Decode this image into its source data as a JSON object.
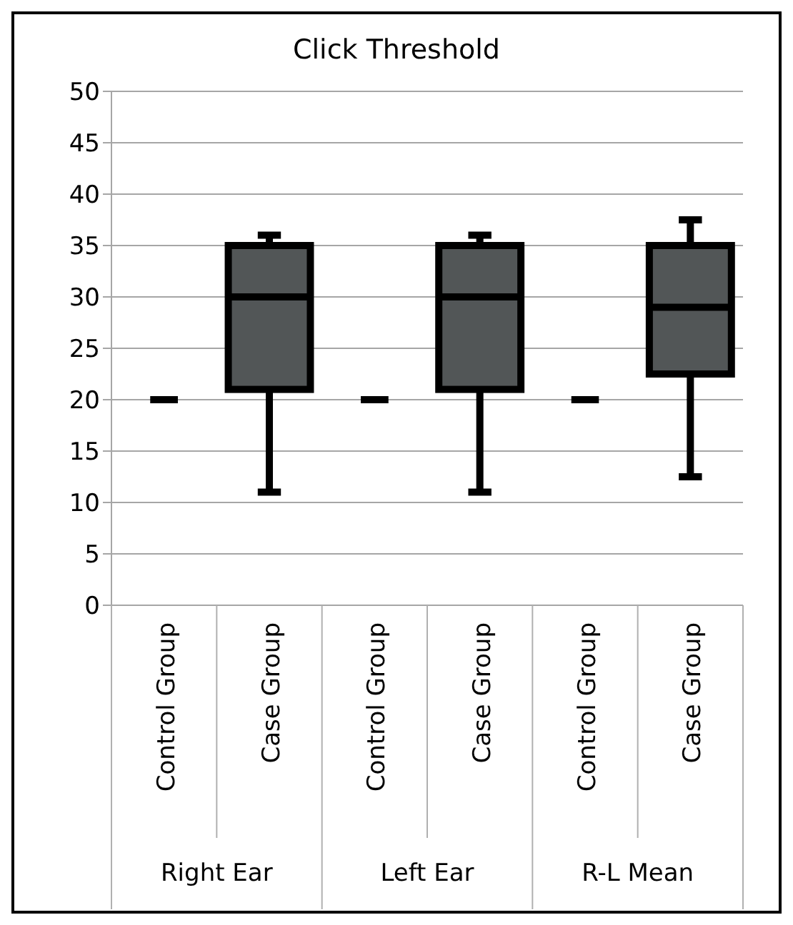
{
  "chart_data": {
    "type": "box",
    "title": "Click Threshold",
    "categories": [
      "Control Group",
      "Case Group",
      "Control Group",
      "Case Group",
      "Control Group",
      "Case Group"
    ],
    "boxes": [
      {
        "low": 20,
        "q1": 20,
        "median": 20,
        "q3": 20,
        "high": 20
      },
      {
        "low": 11,
        "q1": 21,
        "median": 30,
        "q3": 35,
        "high": 36
      },
      {
        "low": 20,
        "q1": 20,
        "median": 20,
        "q3": 20,
        "high": 20
      },
      {
        "low": 11,
        "q1": 21,
        "median": 30,
        "q3": 35,
        "high": 36
      },
      {
        "low": 20,
        "q1": 20,
        "median": 20,
        "q3": 20,
        "high": 20
      },
      {
        "low": 12.5,
        "q1": 22.5,
        "median": 29,
        "q3": 35,
        "high": 37.5
      }
    ],
    "colors": [
      "#000000",
      "#525657",
      "#000000",
      "#525657",
      "#000000",
      "#525657"
    ],
    "annotations": [
      "Right Ear",
      "Left Ear",
      "R-L Mean"
    ],
    "ylim": [
      0,
      50
    ],
    "yticks": [
      0,
      5,
      10,
      15,
      20,
      25,
      30,
      35,
      40,
      45,
      50
    ],
    "grid": "y"
  }
}
